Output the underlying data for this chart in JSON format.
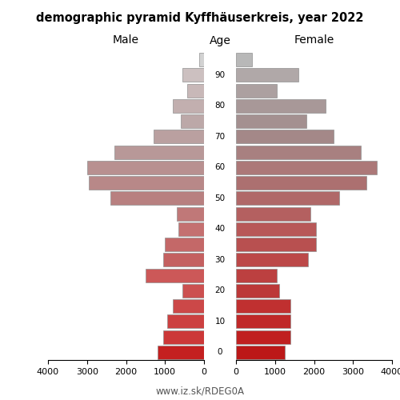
{
  "title": "demographic pyramid Kyffhäuserkreis, year 2022",
  "label_male": "Male",
  "label_female": "Female",
  "label_age": "Age",
  "footer": "www.iz.sk/RDEG0A",
  "xlim": 4000,
  "bar_height": 0.88,
  "male_values": [
    120,
    550,
    430,
    800,
    600,
    1300,
    2300,
    3000,
    2950,
    2400,
    700,
    650,
    1000,
    1050,
    1500,
    550,
    800,
    950,
    1050,
    1200
  ],
  "female_values": [
    400,
    1600,
    1050,
    2300,
    1800,
    2500,
    3200,
    3600,
    3350,
    2650,
    1900,
    2050,
    2050,
    1850,
    1050,
    1100,
    1400,
    1400,
    1400,
    1250
  ],
  "male_colors": [
    "#d2d2d2",
    "#ccc0c0",
    "#c8b8b8",
    "#c2afaf",
    "#bca8a8",
    "#baa0a0",
    "#b89898",
    "#b89090",
    "#b88888",
    "#b88080",
    "#c07878",
    "#c47070",
    "#c46868",
    "#c46060",
    "#cc5858",
    "#cc5050",
    "#cc4848",
    "#cc4040",
    "#cc3838",
    "#c42020"
  ],
  "female_colors": [
    "#b8b8b8",
    "#b0a8a8",
    "#aca0a0",
    "#a89898",
    "#a49090",
    "#a48888",
    "#a88080",
    "#ac7878",
    "#ac7070",
    "#b06868",
    "#b46060",
    "#b85858",
    "#b85050",
    "#bc4848",
    "#bc4040",
    "#bc3838",
    "#c03030",
    "#c02828",
    "#c02020",
    "#bc1818"
  ],
  "age_tick_positions": [
    0,
    2,
    4,
    6,
    8,
    10,
    12,
    14,
    16,
    18,
    19
  ],
  "age_tick_labels": [
    "0",
    "10",
    "20",
    "30",
    "40",
    "50",
    "60",
    "70",
    "80",
    "90",
    ""
  ],
  "x_ticks": [
    0,
    1000,
    2000,
    3000,
    4000
  ],
  "x_tick_labels": [
    "0",
    "1000",
    "2000",
    "3000",
    "4000"
  ]
}
